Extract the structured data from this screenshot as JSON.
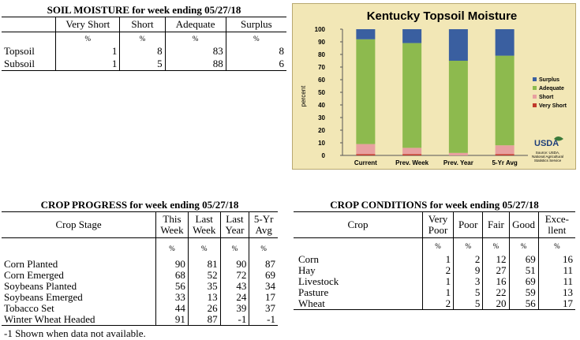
{
  "soil_moisture": {
    "title": "SOIL MOISTURE for week ending 05/27/18",
    "columns": [
      "",
      "Very Short",
      "Short",
      "Adequate",
      "Surplus"
    ],
    "unit_row": [
      "",
      "%",
      "%",
      "%",
      "%"
    ],
    "rows": [
      {
        "label": "Topsoil",
        "values": [
          "1",
          "8",
          "83",
          "8"
        ]
      },
      {
        "label": "Subsoil",
        "values": [
          "1",
          "5",
          "88",
          "6"
        ]
      }
    ]
  },
  "crop_progress": {
    "title": "CROP PROGRESS for week ending 05/27/18",
    "columns": [
      {
        "line1": "Crop Stage",
        "line2": ""
      },
      {
        "line1": "This",
        "line2": "Week"
      },
      {
        "line1": "Last",
        "line2": "Week"
      },
      {
        "line1": "Last",
        "line2": "Year"
      },
      {
        "line1": "5-Yr",
        "line2": "Avg"
      }
    ],
    "unit_row": [
      "",
      "%",
      "%",
      "%",
      "%"
    ],
    "rows": [
      {
        "label": "Corn Planted",
        "values": [
          "90",
          "81",
          "90",
          "87"
        ]
      },
      {
        "label": "Corn Emerged",
        "values": [
          "68",
          "52",
          "72",
          "69"
        ]
      },
      {
        "label": "Soybeans Planted",
        "values": [
          "56",
          "35",
          "43",
          "34"
        ]
      },
      {
        "label": "Soybeans Emerged",
        "values": [
          "33",
          "13",
          "24",
          "17"
        ]
      },
      {
        "label": "Tobacco Set",
        "values": [
          "44",
          "26",
          "39",
          "37"
        ]
      },
      {
        "label": "Winter Wheat Headed",
        "values": [
          "91",
          "87",
          "-1",
          "-1"
        ]
      }
    ],
    "footnote": "-1 Shown when data not available."
  },
  "crop_conditions": {
    "title": "CROP CONDITIONS for week ending 05/27/18",
    "columns": [
      {
        "line1": "Crop",
        "line2": ""
      },
      {
        "line1": "Very",
        "line2": "Poor"
      },
      {
        "line1": "Poor",
        "line2": ""
      },
      {
        "line1": "Fair",
        "line2": ""
      },
      {
        "line1": "Good",
        "line2": ""
      },
      {
        "line1": "Exce-",
        "line2": "llent"
      }
    ],
    "unit_row": [
      "",
      "%",
      "%",
      "%",
      "%",
      "%"
    ],
    "rows": [
      {
        "label": "Corn",
        "values": [
          "1",
          "2",
          "12",
          "69",
          "16"
        ]
      },
      {
        "label": "Hay",
        "values": [
          "2",
          "9",
          "27",
          "51",
          "11"
        ]
      },
      {
        "label": "Livestock",
        "values": [
          "1",
          "3",
          "16",
          "69",
          "11"
        ]
      },
      {
        "label": "Pasture",
        "values": [
          "1",
          "5",
          "22",
          "59",
          "13"
        ]
      },
      {
        "label": "Wheat",
        "values": [
          "2",
          "5",
          "20",
          "56",
          "17"
        ]
      }
    ]
  },
  "chart_data": {
    "type": "bar",
    "stacked": true,
    "title": "Kentucky Topsoil Moisture",
    "ylabel": "percent",
    "xlabel": "",
    "ylim": [
      0,
      100
    ],
    "yticks": [
      0,
      10,
      20,
      30,
      40,
      50,
      60,
      70,
      80,
      90,
      100
    ],
    "categories": [
      "Current",
      "Prev. Week",
      "Prev. Year",
      "5-Yr Avg"
    ],
    "series": [
      {
        "name": "Very Short",
        "color": "#c0392b",
        "values": [
          1,
          1,
          0,
          1
        ]
      },
      {
        "name": "Short",
        "color": "#e8a0a0",
        "values": [
          8,
          5,
          2,
          7
        ]
      },
      {
        "name": "Adequate",
        "color": "#8dba4e",
        "values": [
          83,
          83,
          73,
          71
        ]
      },
      {
        "name": "Surplus",
        "color": "#3a5fa0",
        "values": [
          8,
          11,
          25,
          21
        ]
      }
    ],
    "legend_order": [
      "Surplus",
      "Adequate",
      "Short",
      "Very Short"
    ],
    "legend_position": "right",
    "grid": false,
    "logo_text": "USDA",
    "source_lines": [
      "Source: USDA,",
      "National Agricultural",
      "Statistics Service"
    ]
  }
}
